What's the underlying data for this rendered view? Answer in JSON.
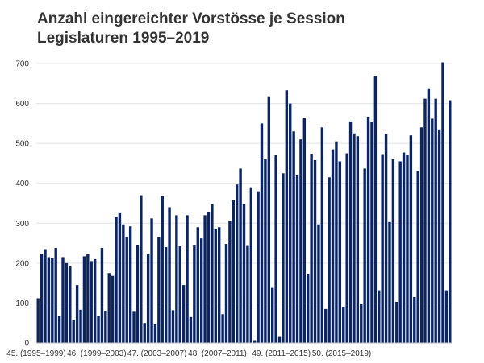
{
  "chart_data": {
    "type": "bar",
    "title": "Anzahl eingereichter Vorstösse je Session",
    "subtitle": "Legislaturen 1995–2019",
    "xlabel": "",
    "ylabel": "",
    "ylim": [
      0,
      700
    ],
    "yticks": [
      0,
      100,
      200,
      300,
      400,
      500,
      600,
      700
    ],
    "grid": true,
    "color": "#0b2463",
    "legislatures": [
      "45. (1995–1999)",
      "46. (1999–2003)",
      "47. (2003–2007)",
      "48. (2007–2011)",
      "49. (2011–2015)",
      "50. (2015–2019)"
    ],
    "legislature_start_index": [
      0,
      17,
      34,
      51,
      69,
      86
    ],
    "values": [
      112,
      222,
      235,
      215,
      212,
      238,
      68,
      215,
      200,
      192,
      57,
      145,
      83,
      217,
      222,
      205,
      210,
      68,
      238,
      80,
      175,
      168,
      315,
      325,
      297,
      265,
      292,
      78,
      245,
      370,
      50,
      222,
      312,
      47,
      265,
      368,
      240,
      340,
      82,
      320,
      242,
      145,
      320,
      65,
      245,
      290,
      262,
      320,
      327,
      348,
      285,
      290,
      72,
      248,
      306,
      357,
      397,
      437,
      348,
      243,
      390,
      5,
      380,
      550,
      460,
      618,
      138,
      470,
      15,
      425,
      633,
      600,
      530,
      420,
      510,
      563,
      172,
      474,
      458,
      297,
      540,
      85,
      415,
      485,
      505,
      455,
      90,
      475,
      555,
      525,
      518,
      97,
      437,
      567,
      553,
      668,
      132,
      473,
      524,
      303,
      460,
      103,
      455,
      477,
      472,
      520,
      115,
      430,
      540,
      612,
      638,
      562,
      612,
      535,
      703,
      132,
      608
    ]
  }
}
